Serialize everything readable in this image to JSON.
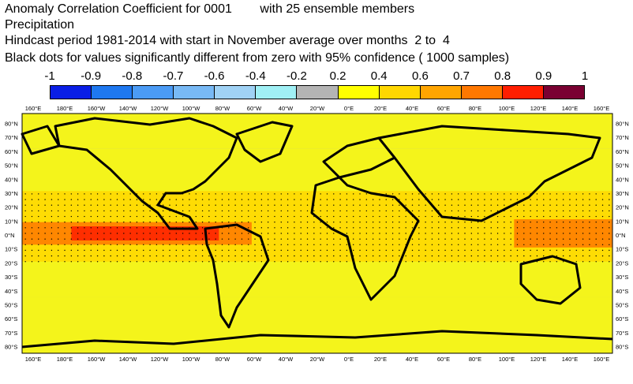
{
  "title": {
    "line1": "Anomaly Correlation Coefficient for 0001        with 25 ensemble members",
    "line2": "Precipitation",
    "line3": "Hindcast period 1981-2014 with start in November average over months  2 to  4",
    "line4": "Black dots for values significantly different from zero with 95% confidence ( 1000 samples)"
  },
  "colorbar": {
    "labels": [
      "-1",
      "-0.9",
      "-0.8",
      "-0.7",
      "-0.6",
      "-0.4",
      "-0.2",
      "0.2",
      "0.4",
      "0.6",
      "0.7",
      "0.8",
      "0.9",
      "1"
    ],
    "colors": [
      "#0a1ee6",
      "#1e78f0",
      "#4b9bf5",
      "#78b9f5",
      "#a0d2f5",
      "#a0f0f5",
      "#b4b4b4",
      "#ffff00",
      "#ffd700",
      "#ffa500",
      "#ff7800",
      "#ff1e00",
      "#7a0032"
    ]
  },
  "chart_data": {
    "type": "heatmap",
    "title": "Anomaly Correlation Coefficient for 0001 with 25 ensemble members",
    "variable": "Precipitation",
    "x_ticks": [
      "160°E",
      "180°E",
      "160°W",
      "140°W",
      "120°W",
      "100°W",
      "80°W",
      "60°W",
      "40°W",
      "20°W",
      "0°E",
      "20°E",
      "40°E",
      "60°E",
      "80°E",
      "100°E",
      "120°E",
      "140°E",
      "160°E"
    ],
    "y_ticks": [
      "80°N",
      "70°N",
      "60°N",
      "50°N",
      "40°N",
      "30°N",
      "20°N",
      "10°N",
      "0°N",
      "10°S",
      "20°S",
      "30°S",
      "40°S",
      "50°S",
      "60°S",
      "70°S",
      "80°S"
    ],
    "xlim": [
      -200,
      160
    ],
    "ylim": [
      -85,
      85
    ],
    "bands": [
      {
        "lat": [
          -5,
          5
        ],
        "lon": [
          -170,
          -80
        ],
        "value": 0.9
      },
      {
        "lat": [
          -8,
          8
        ],
        "lon": [
          -200,
          -60
        ],
        "value": 0.8
      },
      {
        "lat": [
          -10,
          10
        ],
        "lon": [
          100,
          160
        ],
        "value": 0.8
      },
      {
        "lat": [
          -20,
          30
        ],
        "lon": [
          -200,
          160
        ],
        "value": 0.6
      },
      {
        "lat": [
          -45,
          60
        ],
        "lon": [
          -200,
          160
        ],
        "value": 0.4
      },
      {
        "lat": [
          60,
          85
        ],
        "lon": [
          -200,
          160
        ],
        "value": 0.2
      },
      {
        "lat": [
          -85,
          -45
        ],
        "lon": [
          -200,
          160
        ],
        "value": 0.2
      }
    ]
  }
}
